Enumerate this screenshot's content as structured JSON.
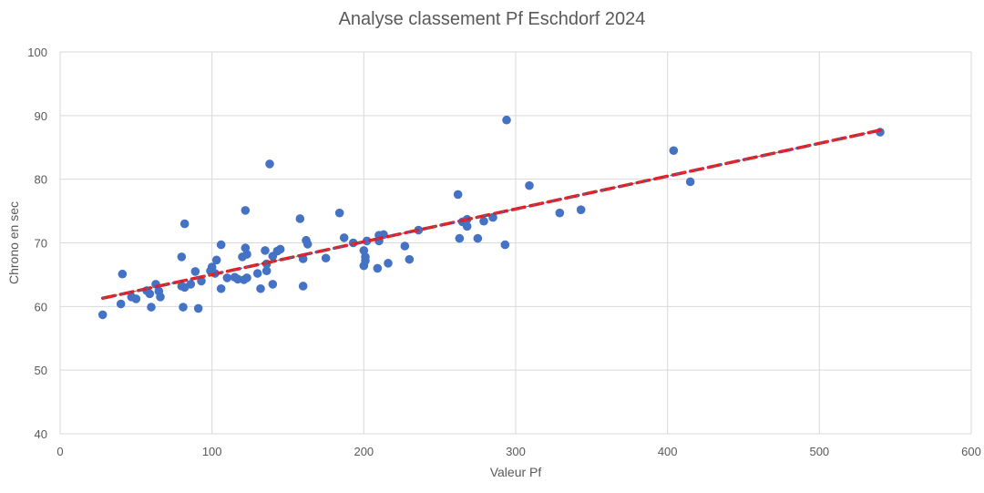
{
  "chart_data": {
    "type": "scatter",
    "title": "Analyse classement Pf Eschdorf 2024",
    "xlabel": "Valeur Pf",
    "ylabel": "Chrono en sec",
    "xlim": [
      0,
      600
    ],
    "ylim": [
      40,
      100
    ],
    "x_ticks": [
      "0",
      "100",
      "200",
      "300",
      "400",
      "500",
      "600"
    ],
    "y_ticks": [
      "40",
      "50",
      "60",
      "70",
      "80",
      "90",
      "100"
    ],
    "grid": true,
    "legend": "none",
    "point_color": "#4472C4",
    "trendline": {
      "type": "linear",
      "color": "#E02020",
      "style": "dashed",
      "x": [
        28,
        540
      ],
      "y": [
        61.3,
        87.7
      ]
    },
    "points": [
      [
        28,
        58.7
      ],
      [
        40,
        60.4
      ],
      [
        41,
        65.1
      ],
      [
        47,
        61.5
      ],
      [
        50,
        61.2
      ],
      [
        57,
        62.5
      ],
      [
        59,
        62.0
      ],
      [
        60,
        59.9
      ],
      [
        63,
        63.5
      ],
      [
        65,
        62.4
      ],
      [
        66,
        61.5
      ],
      [
        80,
        67.8
      ],
      [
        80,
        63.2
      ],
      [
        81,
        59.9
      ],
      [
        82,
        63.0
      ],
      [
        82,
        73.0
      ],
      [
        86,
        63.5
      ],
      [
        89,
        65.5
      ],
      [
        91,
        59.7
      ],
      [
        93,
        64.0
      ],
      [
        99,
        65.6
      ],
      [
        100,
        66.2
      ],
      [
        102,
        65.2
      ],
      [
        103,
        67.3
      ],
      [
        106,
        62.8
      ],
      [
        106,
        69.7
      ],
      [
        110,
        64.5
      ],
      [
        115,
        64.6
      ],
      [
        117,
        64.3
      ],
      [
        120,
        67.8
      ],
      [
        121,
        64.2
      ],
      [
        122,
        75.1
      ],
      [
        122,
        69.2
      ],
      [
        123,
        64.5
      ],
      [
        123,
        68.2
      ],
      [
        130,
        65.2
      ],
      [
        132,
        62.8
      ],
      [
        135,
        68.8
      ],
      [
        136,
        66.7
      ],
      [
        136,
        65.6
      ],
      [
        138,
        82.4
      ],
      [
        140,
        63.5
      ],
      [
        140,
        67.9
      ],
      [
        143,
        68.7
      ],
      [
        145,
        69.0
      ],
      [
        158,
        73.8
      ],
      [
        160,
        63.2
      ],
      [
        160,
        67.5
      ],
      [
        162,
        70.4
      ],
      [
        163,
        69.8
      ],
      [
        175,
        67.6
      ],
      [
        184,
        74.7
      ],
      [
        187,
        70.8
      ],
      [
        193,
        70.0
      ],
      [
        200,
        68.8
      ],
      [
        200,
        66.4
      ],
      [
        201,
        67.2
      ],
      [
        201,
        67.8
      ],
      [
        202,
        70.3
      ],
      [
        209,
        66.0
      ],
      [
        210,
        71.2
      ],
      [
        210,
        70.3
      ],
      [
        213,
        71.3
      ],
      [
        216,
        66.8
      ],
      [
        227,
        69.5
      ],
      [
        230,
        67.4
      ],
      [
        236,
        72.0
      ],
      [
        262,
        77.6
      ],
      [
        263,
        70.7
      ],
      [
        265,
        73.3
      ],
      [
        268,
        73.7
      ],
      [
        268,
        72.6
      ],
      [
        275,
        70.7
      ],
      [
        279,
        73.4
      ],
      [
        285,
        74.0
      ],
      [
        293,
        69.7
      ],
      [
        294,
        89.3
      ],
      [
        309,
        79.0
      ],
      [
        329,
        74.7
      ],
      [
        343,
        75.2
      ],
      [
        404,
        84.5
      ],
      [
        415,
        79.6
      ],
      [
        540,
        87.4
      ]
    ]
  }
}
